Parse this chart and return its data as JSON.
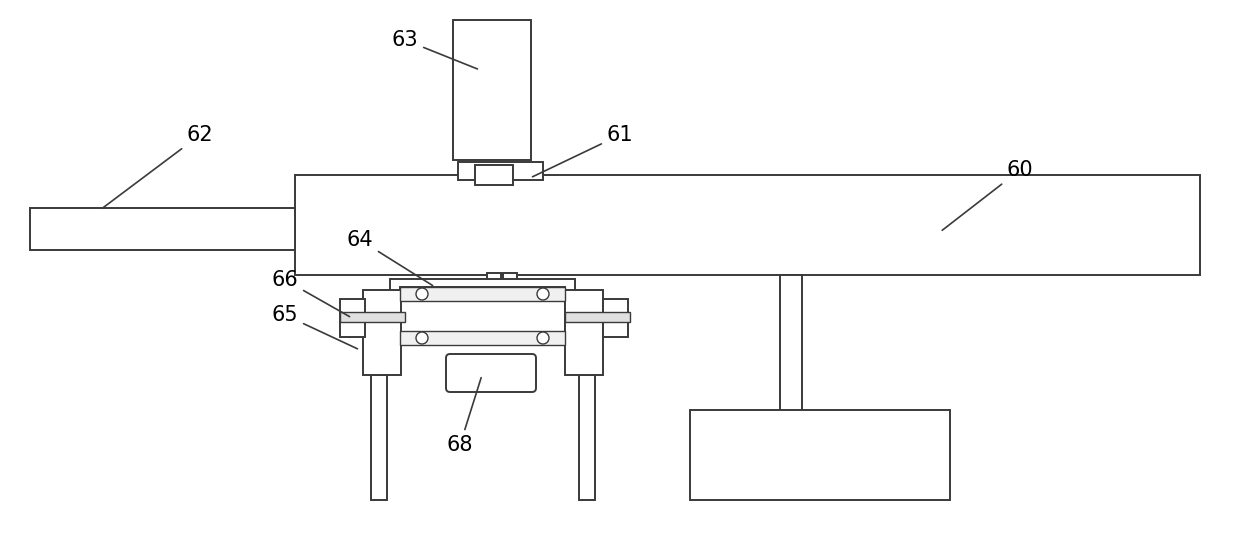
{
  "bg_color": "#ffffff",
  "line_color": "#3a3a3a",
  "lw": 1.4,
  "fig_width": 12.4,
  "fig_height": 5.5,
  "label_fontsize": 15
}
